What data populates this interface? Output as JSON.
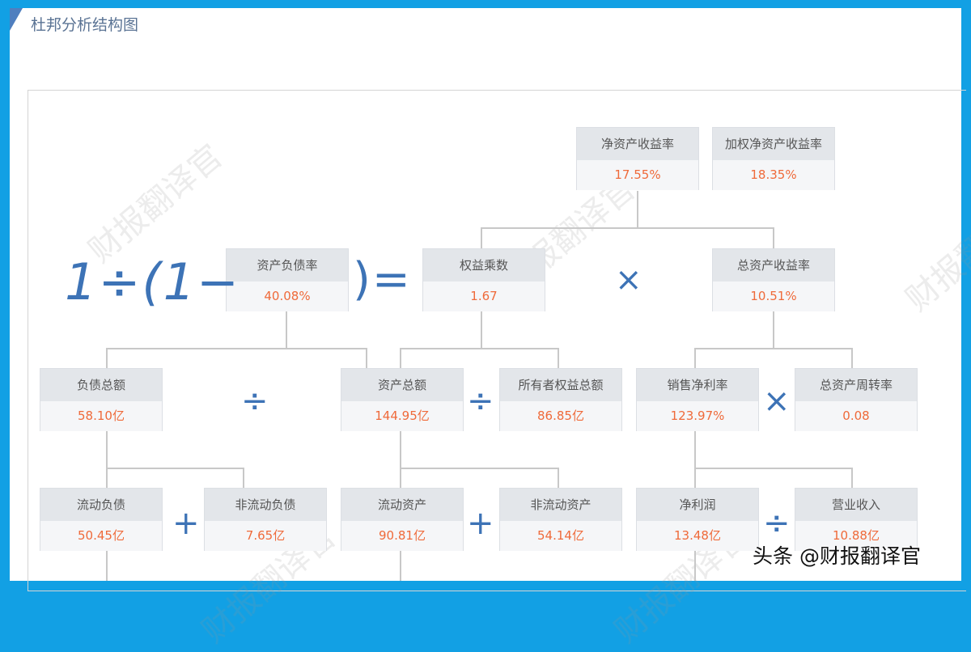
{
  "title": "杜邦分析结构图",
  "watermark": "财报翻译官",
  "footer": "头条 @财报翻译官",
  "formula": {
    "left": "1÷(1−",
    "right": ")=",
    "times": "×",
    "divide": "÷",
    "plus": "+"
  },
  "boxes": {
    "roe": {
      "label": "净资产收益率",
      "value": "17.55%"
    },
    "weighted_roe": {
      "label": "加权净资产收益率",
      "value": "18.35%"
    },
    "debt_ratio": {
      "label": "资产负债率",
      "value": "40.08%"
    },
    "equity_multiplier": {
      "label": "权益乘数",
      "value": "1.67"
    },
    "roa": {
      "label": "总资产收益率",
      "value": "10.51%"
    },
    "total_liabilities": {
      "label": "负债总额",
      "value": "58.10亿"
    },
    "total_assets": {
      "label": "资产总额",
      "value": "144.95亿"
    },
    "total_equity": {
      "label": "所有者权益总额",
      "value": "86.85亿"
    },
    "net_margin": {
      "label": "销售净利率",
      "value": "123.97%"
    },
    "asset_turnover": {
      "label": "总资产周转率",
      "value": "0.08"
    },
    "current_liabilities": {
      "label": "流动负债",
      "value": "50.45亿"
    },
    "noncurrent_liabilities": {
      "label": "非流动负债",
      "value": "7.65亿"
    },
    "current_assets": {
      "label": "流动资产",
      "value": "90.81亿"
    },
    "noncurrent_assets": {
      "label": "非流动资产",
      "value": "54.14亿"
    },
    "net_profit": {
      "label": "净利润",
      "value": "13.48亿"
    },
    "revenue": {
      "label": "营业收入",
      "value": "10.88亿"
    }
  },
  "colors": {
    "frame": "#12a0e4",
    "value": "#ef6a3a",
    "operator": "#3d73b6"
  }
}
